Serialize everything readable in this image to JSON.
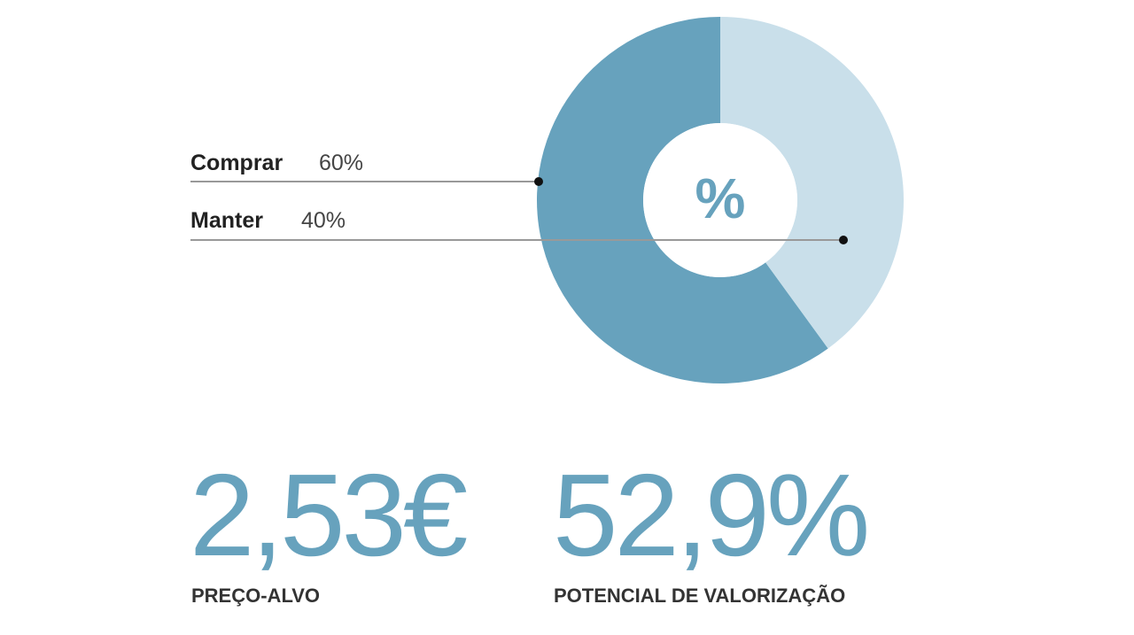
{
  "chart_data": {
    "type": "pie",
    "donut": true,
    "center_label": "%",
    "categories": [
      "Comprar",
      "Manter"
    ],
    "values": [
      60,
      40
    ],
    "value_labels": [
      "60%",
      "40%"
    ],
    "colors": [
      "#67a2bd",
      "#c9dfea"
    ]
  },
  "stats": [
    {
      "value": "2,53€",
      "label": "PREÇO-ALVO"
    },
    {
      "value": "52,9%",
      "label": "POTENCIAL DE VALORIZAÇÃO"
    }
  ]
}
